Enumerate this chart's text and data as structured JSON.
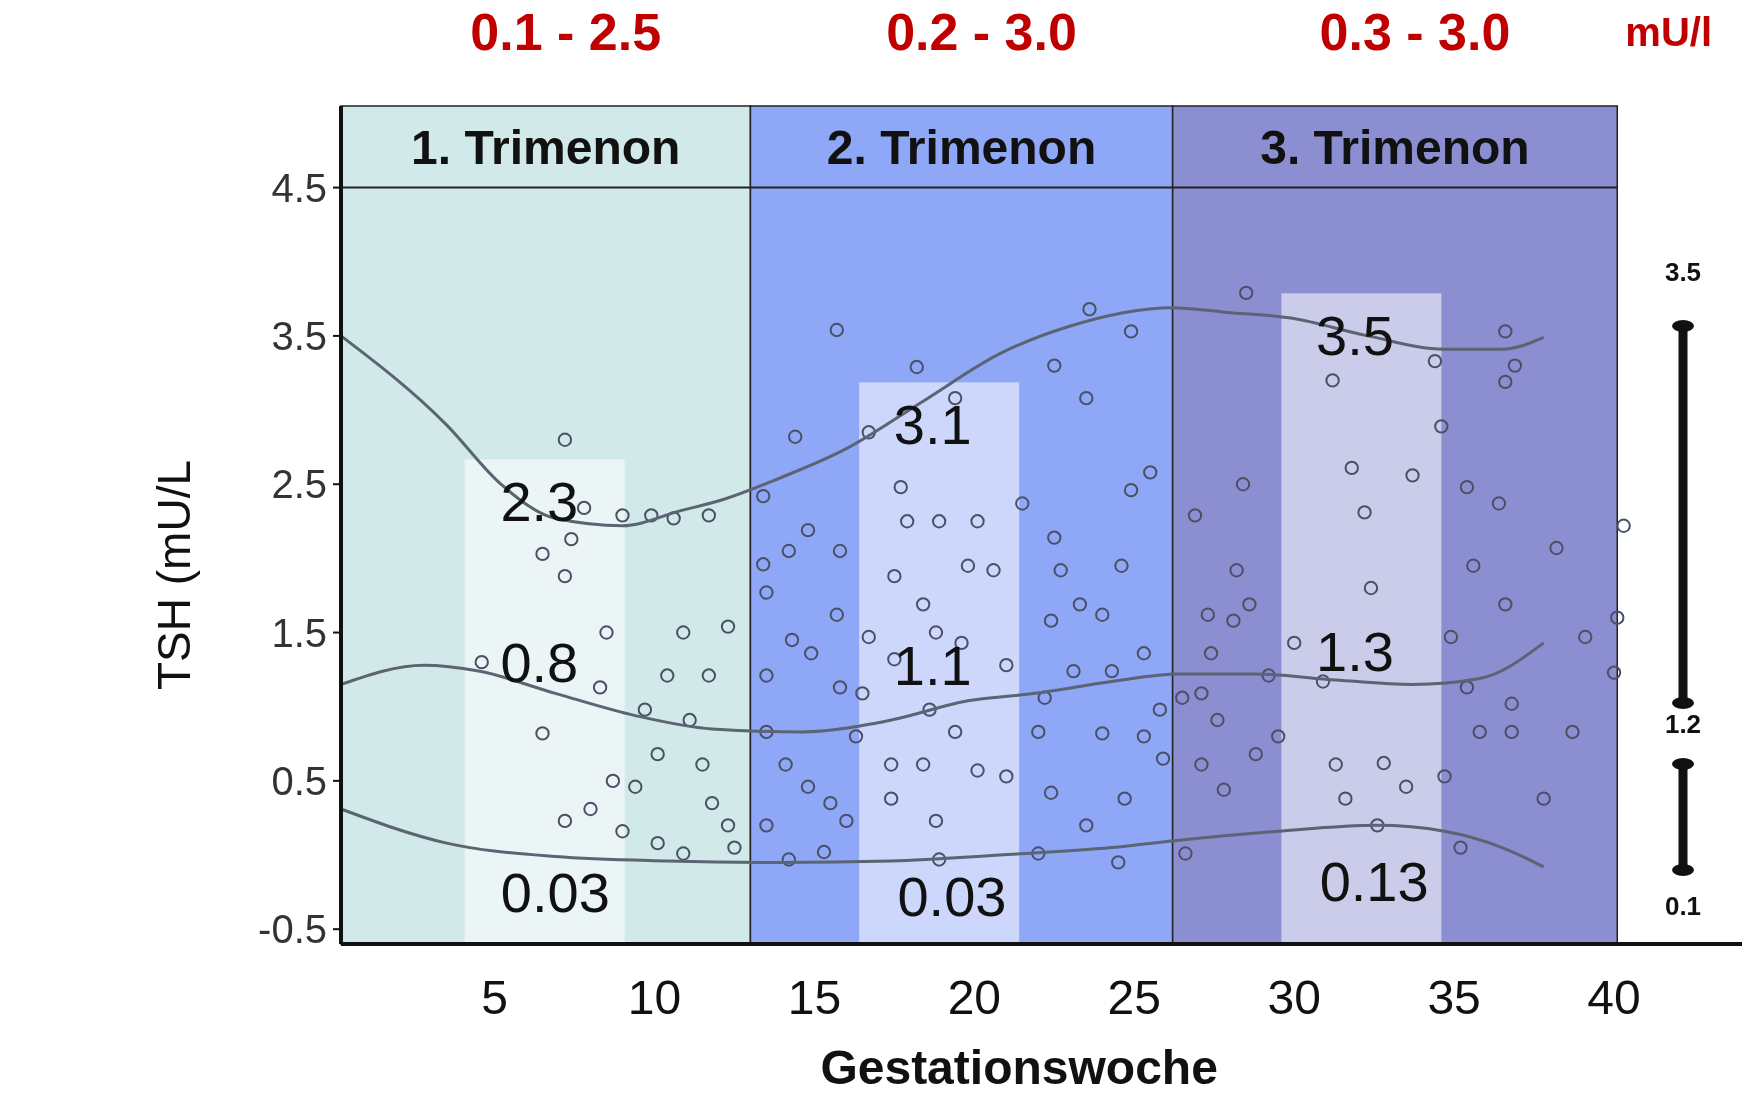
{
  "chart_data": {
    "type": "scatter",
    "xlabel": "Gestationswoche",
    "ylabel": "TSH (mU/L",
    "xlim": [
      0.2,
      44
    ],
    "ylim": [
      -0.6,
      5.05
    ],
    "xticks": [
      5,
      10,
      15,
      20,
      25,
      30,
      35,
      40
    ],
    "yticks": [
      -0.5,
      0.5,
      1.5,
      2.5,
      3.5,
      4.5
    ],
    "grid": false,
    "bands": [
      {
        "axis": "x",
        "from": 0.2,
        "to": 13,
        "label": "1. Trimenon",
        "color": "#d2e9e9"
      },
      {
        "axis": "x",
        "from": 13,
        "to": 26.2,
        "label": "2. Trimenon",
        "color": "#8ea7f7"
      },
      {
        "axis": "x",
        "from": 26.2,
        "to": 40.1,
        "label": "3. Trimenon",
        "color": "#8b8fd1"
      }
    ],
    "ref_lines": [
      {
        "axis": "y",
        "value": 4.5,
        "color": "#222222"
      }
    ],
    "series": [
      {
        "color": "#4b5066",
        "marker": "circle",
        "x": [
          7.2,
          6.5,
          7.4,
          7.2,
          7.8,
          9.0,
          9.9,
          10.6,
          11.7,
          10.9,
          8.5,
          12.3,
          4.6,
          6.5,
          7.2,
          8.0,
          8.7,
          9.4,
          10.1,
          11.1,
          11.5,
          11.8,
          12.3,
          12.5,
          10.9,
          10.1,
          9.0,
          10.4,
          9.7,
          8.3,
          11.7,
          15.7,
          14.4,
          13.4,
          14.8,
          14.2,
          13.4,
          13.5,
          15.8,
          15.7,
          13.5,
          14.3,
          14.9,
          15.8,
          13.5,
          14.1,
          14.8,
          15.5,
          16.0,
          13.5,
          15.3,
          14.2,
          16.7,
          16.5,
          16.3,
          17.4,
          16.7,
          17.7,
          18.2,
          19.4,
          17.9,
          18.9,
          20.1,
          21.5,
          17.5,
          18.4,
          19.8,
          20.6,
          18.8,
          17.5,
          19.6,
          21.0,
          18.6,
          19.4,
          18.4,
          20.1,
          21.0,
          18.8,
          17.4,
          18.9,
          22.5,
          23.5,
          23.6,
          24.9,
          25.5,
          24.9,
          22.5,
          22.7,
          23.3,
          24.0,
          24.6,
          22.4,
          23.1,
          24.3,
          22.2,
          25.8,
          22.0,
          24.0,
          25.3,
          25.9,
          22.4,
          24.7,
          23.5,
          22.0,
          24.5,
          25.3,
          28.5,
          26.9,
          28.4,
          28.2,
          27.3,
          28.1,
          28.6,
          27.4,
          27.1,
          27.6,
          27.1,
          27.8,
          28.8,
          29.5,
          29.2,
          30.0,
          26.5,
          26.6,
          31.2,
          31.8,
          32.2,
          33.7,
          34.6,
          34.4,
          32.4,
          30.9,
          32.8,
          31.3,
          33.5,
          34.7,
          32.6,
          31.6,
          34.9,
          35.4,
          36.4,
          35.6,
          36.6,
          35.4,
          36.8,
          35.8,
          36.8,
          36.6,
          36.9,
          36.6,
          38.2,
          37.8,
          38.7,
          39.1,
          35.2,
          40.3,
          40.1,
          40.0
        ],
        "values": [
          2.8,
          2.03,
          2.13,
          1.88,
          2.34,
          2.29,
          2.29,
          2.27,
          2.29,
          1.5,
          1.5,
          1.54,
          1.3,
          0.82,
          0.23,
          0.31,
          0.5,
          0.46,
          0.68,
          0.91,
          0.61,
          0.35,
          0.2,
          0.05,
          0.01,
          0.08,
          0.16,
          1.21,
          0.98,
          1.13,
          1.21,
          3.54,
          2.82,
          2.42,
          2.19,
          2.05,
          1.96,
          1.77,
          2.05,
          1.62,
          1.21,
          1.45,
          1.36,
          1.13,
          0.83,
          0.61,
          0.46,
          0.35,
          0.23,
          0.2,
          0.02,
          -0.03,
          1.47,
          1.09,
          0.8,
          0.61,
          2.85,
          2.48,
          3.29,
          3.08,
          2.25,
          2.25,
          2.25,
          2.37,
          1.88,
          1.69,
          1.95,
          1.92,
          1.5,
          1.32,
          1.43,
          1.28,
          0.98,
          0.83,
          0.61,
          0.57,
          0.53,
          0.23,
          0.38,
          -0.03,
          3.3,
          3.08,
          3.68,
          3.53,
          2.58,
          2.46,
          2.14,
          1.92,
          1.69,
          1.62,
          1.95,
          1.58,
          1.24,
          1.24,
          1.06,
          0.98,
          0.83,
          0.82,
          0.8,
          0.65,
          0.42,
          0.38,
          0.2,
          0.01,
          -0.05,
          1.36,
          3.79,
          2.29,
          2.5,
          1.92,
          1.62,
          1.58,
          1.69,
          1.36,
          1.09,
          0.91,
          0.61,
          0.44,
          0.68,
          0.8,
          1.21,
          1.43,
          1.06,
          0.01,
          3.2,
          2.61,
          2.31,
          2.56,
          2.89,
          3.33,
          1.8,
          1.17,
          0.62,
          0.61,
          0.46,
          0.53,
          0.2,
          0.38,
          1.47,
          2.48,
          2.37,
          1.95,
          1.69,
          1.13,
          1.02,
          0.83,
          0.83,
          3.53,
          3.3,
          3.19,
          2.07,
          0.38,
          0.83,
          1.47,
          0.05,
          2.22,
          1.6,
          1.23
        ]
      },
      {
        "type": "line",
        "color": "#5a6472",
        "x": [
          0.2,
          3.5,
          5.2,
          6.9,
          9,
          10.8,
          12.2,
          13.9,
          16,
          18.4,
          20.8,
          22.9,
          26.2,
          27.8,
          29.9,
          32.3,
          34.7,
          36.5,
          37.8
        ],
        "values": [
          3.5,
          2.9,
          2.5,
          2.27,
          2.22,
          2.32,
          2.4,
          2.54,
          2.74,
          3.06,
          3.38,
          3.56,
          3.69,
          3.66,
          3.62,
          3.5,
          3.41,
          3.41,
          3.49
        ]
      },
      {
        "type": "line",
        "color": "#5a6472",
        "x": [
          0.2,
          2.8,
          4.5,
          6.9,
          9.4,
          11.8,
          14.6,
          17.4,
          19.8,
          21.9,
          24.3,
          26.4,
          28.8,
          31.3,
          33.7,
          35.8,
          37.8
        ],
        "values": [
          1.15,
          1.28,
          1.24,
          1.09,
          0.94,
          0.85,
          0.83,
          0.91,
          1.04,
          1.09,
          1.17,
          1.22,
          1.22,
          1.18,
          1.15,
          1.19,
          1.43
        ]
      },
      {
        "type": "line",
        "color": "#5a6472",
        "x": [
          0.2,
          3.5,
          6.9,
          10.4,
          13.9,
          17.4,
          20.8,
          24.3,
          26.4,
          29.5,
          32.6,
          34.7,
          36.5,
          37.8
        ],
        "values": [
          0.31,
          0.08,
          -0.01,
          -0.04,
          -0.05,
          -0.04,
          0,
          0.05,
          0.1,
          0.16,
          0.2,
          0.16,
          0.05,
          -0.08
        ]
      }
    ],
    "annotations": [
      "0.1 - 2.5",
      "0.2 - 3.0",
      "0.3 - 3.0",
      "mU/l",
      "3.5",
      "1.2",
      "0.1",
      "2.3",
      "0.8",
      "0.03",
      "3.1",
      "1.1",
      "0.03",
      "3.5",
      "1.3",
      "0.13"
    ]
  }
}
